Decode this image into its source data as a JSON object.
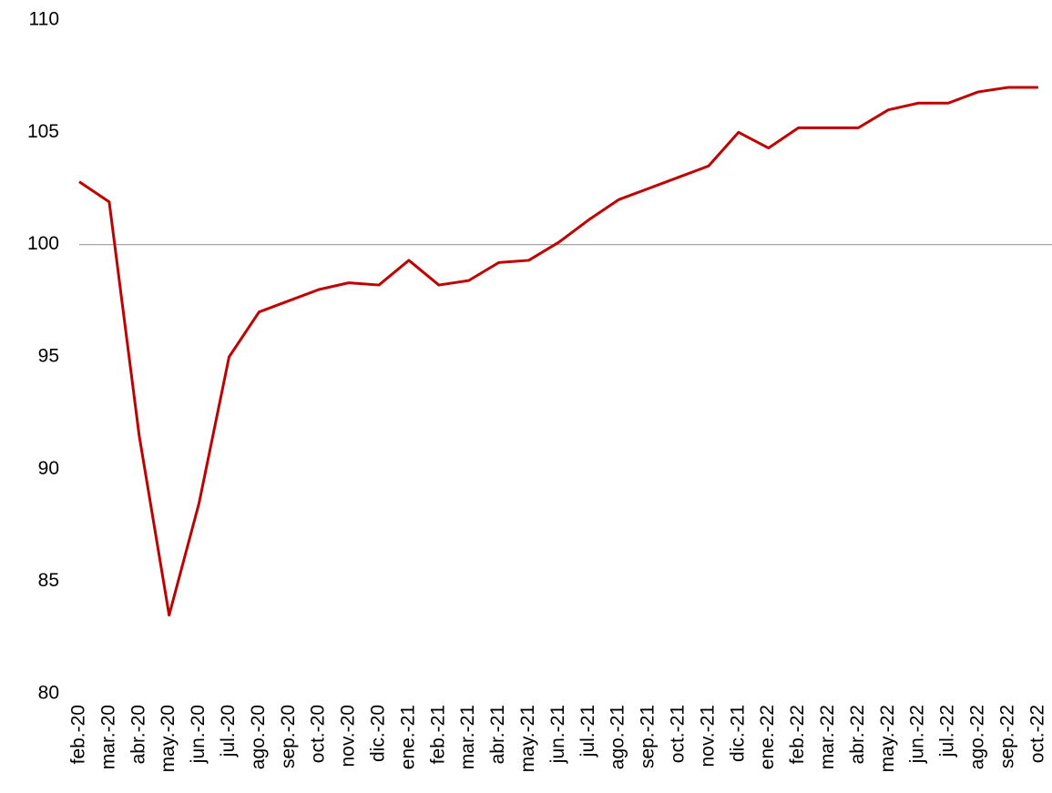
{
  "chart_data": {
    "type": "line",
    "categories": [
      "feb.-20",
      "mar.-20",
      "abr.-20",
      "may.-20",
      "jun.-20",
      "jul.-20",
      "ago.-20",
      "sep.-20",
      "oct.-20",
      "nov.-20",
      "dic.-20",
      "ene.-21",
      "feb.-21",
      "mar.-21",
      "abr.-21",
      "may.-21",
      "jun.-21",
      "jul.-21",
      "ago.-21",
      "sep.-21",
      "oct.-21",
      "nov.-21",
      "dic.-21",
      "ene.-22",
      "feb.-22",
      "mar.-22",
      "abr.-22",
      "may.-22",
      "jun.-22",
      "jul.-22",
      "ago.-22",
      "sep.-22",
      "oct.-22"
    ],
    "series": [
      {
        "color": "#c00000",
        "values": [
          102.8,
          101.9,
          91.5,
          83.5,
          88.5,
          95,
          97,
          97.5,
          98,
          98.3,
          98.2,
          99.3,
          98.2,
          98.4,
          99.2,
          99.3,
          100.1,
          101.1,
          102,
          102.5,
          103,
          103.5,
          105,
          104.3,
          105.2,
          105.2,
          105.2,
          106,
          106.3,
          106.3,
          106.8,
          107,
          107
        ]
      }
    ],
    "ylim": [
      80,
      110
    ],
    "yticks": [
      80,
      85,
      90,
      95,
      100,
      105,
      110
    ],
    "hline": 100
  }
}
